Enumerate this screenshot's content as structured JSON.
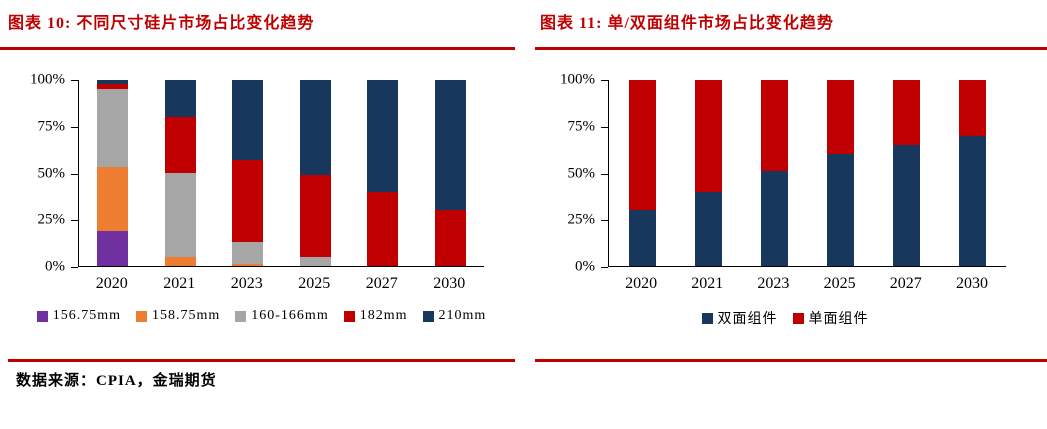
{
  "source_note": "数据来源：CPIA，金瑞期货",
  "style": {
    "accent_color": "#C00000",
    "axis_color": "#000000",
    "text_color": "#000000",
    "background": "#FFFFFF"
  },
  "chart_data": [
    {
      "id": "figure-10",
      "type": "bar",
      "stacked": true,
      "grid": false,
      "legend_position": "bottom",
      "title": "图表 10: 不同尺寸硅片市场占比变化趋势",
      "xlabel": "",
      "ylabel": "",
      "ylim": [
        0,
        100
      ],
      "yticks": [
        {
          "label": "0%",
          "value": 0
        },
        {
          "label": "25%",
          "value": 25
        },
        {
          "label": "50%",
          "value": 50
        },
        {
          "label": "75%",
          "value": 75
        },
        {
          "label": "100%",
          "value": 100
        }
      ],
      "categories": [
        "2020",
        "2021",
        "2023",
        "2025",
        "2027",
        "2030"
      ],
      "series": [
        {
          "name": "156.75mm",
          "color": "#7030A0",
          "values": [
            19,
            0,
            0,
            0,
            0,
            0
          ]
        },
        {
          "name": "158.75mm",
          "color": "#ED7D31",
          "values": [
            34,
            5,
            1,
            0,
            0,
            0
          ]
        },
        {
          "name": "160-166mm",
          "color": "#A6A6A6",
          "values": [
            42,
            45,
            12,
            5,
            0,
            0
          ]
        },
        {
          "name": "182mm",
          "color": "#C00000",
          "values": [
            3,
            30,
            44,
            44,
            40,
            30
          ]
        },
        {
          "name": "210mm",
          "color": "#17375D",
          "values": [
            2,
            20,
            43,
            51,
            60,
            70
          ]
        }
      ]
    },
    {
      "id": "figure-11",
      "type": "bar",
      "stacked": true,
      "grid": false,
      "legend_position": "bottom",
      "title": "图表 11: 单/双面组件市场占比变化趋势",
      "xlabel": "",
      "ylabel": "",
      "ylim": [
        0,
        100
      ],
      "yticks": [
        {
          "label": "0%",
          "value": 0
        },
        {
          "label": "25%",
          "value": 25
        },
        {
          "label": "50%",
          "value": 50
        },
        {
          "label": "75%",
          "value": 75
        },
        {
          "label": "100%",
          "value": 100
        }
      ],
      "categories": [
        "2020",
        "2021",
        "2023",
        "2025",
        "2027",
        "2030"
      ],
      "series": [
        {
          "name": "双面组件",
          "color": "#17375D",
          "values": [
            30,
            40,
            51,
            60,
            65,
            70
          ]
        },
        {
          "name": "单面组件",
          "color": "#C00000",
          "values": [
            70,
            60,
            49,
            40,
            35,
            30
          ]
        }
      ]
    }
  ]
}
